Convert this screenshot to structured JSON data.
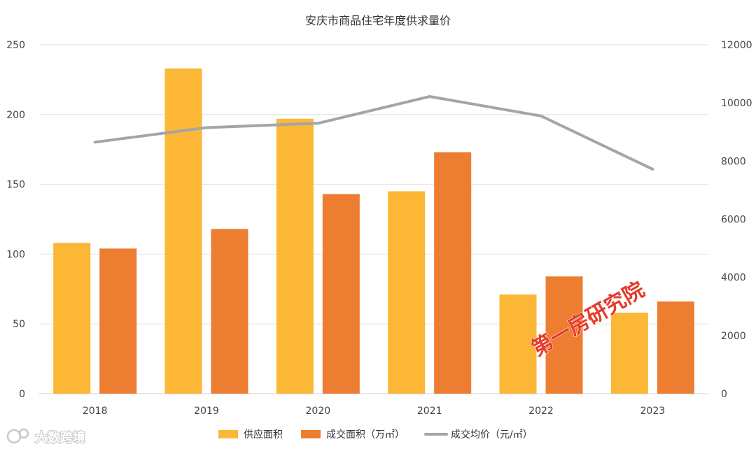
{
  "chart_data": {
    "type": "bar",
    "title": "安庆市商品住宅年度供求量价",
    "categories": [
      "2018",
      "2019",
      "2020",
      "2021",
      "2022",
      "2023"
    ],
    "series": [
      {
        "name": "供应面积",
        "kind": "bar",
        "axis": "left",
        "color": "#FBB735",
        "values": [
          108,
          233,
          197,
          145,
          71,
          58
        ]
      },
      {
        "name": "成交面积（万㎡）",
        "kind": "bar",
        "axis": "left",
        "color": "#ED7D31",
        "values": [
          104,
          118,
          143,
          173,
          84,
          66
        ]
      },
      {
        "name": "成交均价（元/㎡）",
        "kind": "line",
        "axis": "right",
        "color": "#A5A5A5",
        "values": [
          8650,
          9150,
          9300,
          10220,
          9550,
          7720
        ]
      }
    ],
    "ylim_left": [
      0,
      250
    ],
    "yticks_left": [
      "0",
      "50",
      "100",
      "150",
      "200",
      "250"
    ],
    "ylim_right": [
      0,
      12000
    ],
    "yticks_right": [
      "0",
      "2000",
      "4000",
      "6000",
      "8000",
      "10000",
      "12000"
    ],
    "grid": true,
    "legend_position": "bottom"
  },
  "watermark": {
    "text": "第一房研究院",
    "color": "#e53a2a"
  },
  "logo": {
    "text": "大数跨境",
    "icon": "logo-icon"
  }
}
